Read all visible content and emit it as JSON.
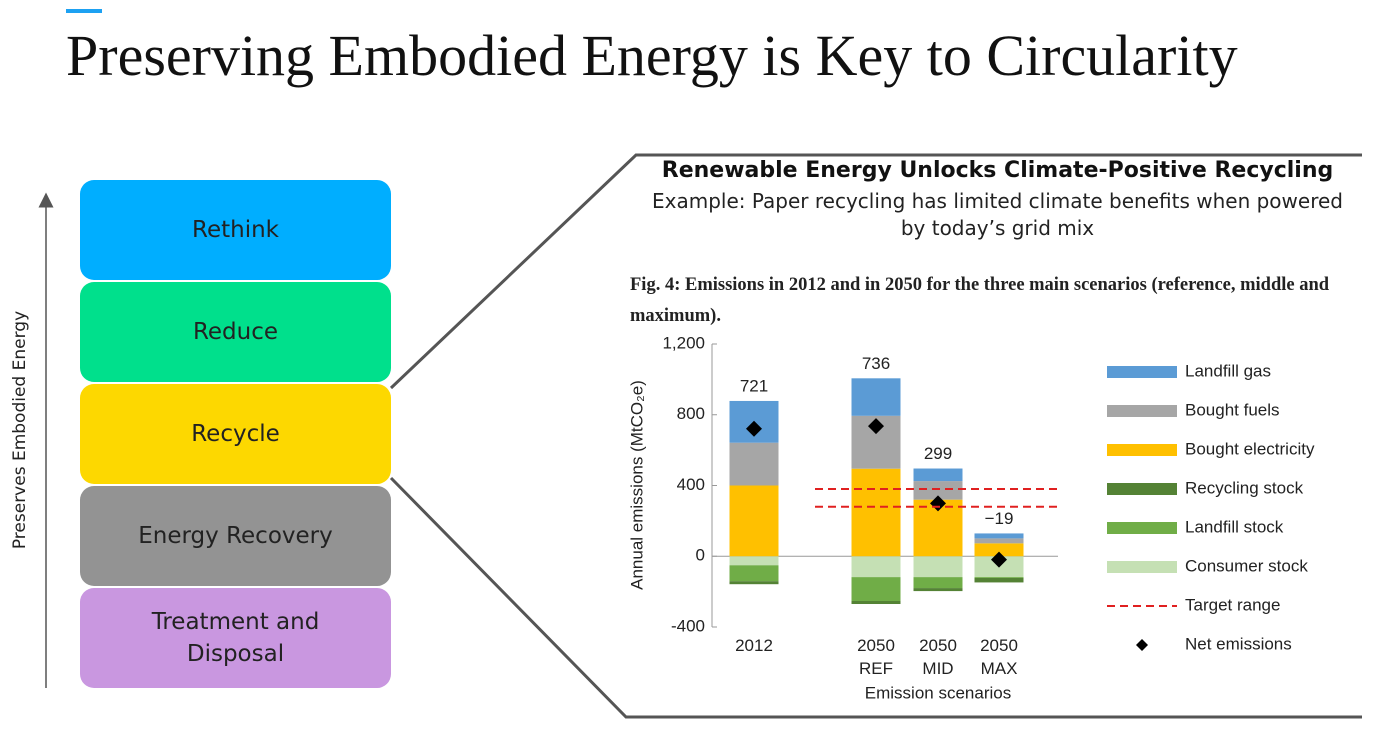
{
  "header": {
    "title": "Preserving Embodied Energy is Key to Circularity"
  },
  "hierarchy": {
    "axis_label": "Preserves Embodied Energy",
    "levels": [
      "Rethink",
      "Reduce",
      "Recycle",
      "Energy Recovery",
      "Treatment and Disposal"
    ]
  },
  "callout": {
    "heading": "Renewable Energy Unlocks Climate-Positive Recycling",
    "text": "Example: Paper recycling has limited climate benefits when powered by today’s grid mix",
    "figure_caption": "Fig. 4: Emissions in 2012 and in 2050 for the three main scenarios (reference, middle and maximum)."
  },
  "chart_data": {
    "type": "stacked_bar",
    "categories": [
      "2012",
      "2050\nREF",
      "2050\nMID",
      "2050\nMAX"
    ],
    "x_label": "Emission scenarios",
    "y_label": "Annual emissions (MtCO₂e)",
    "ylim": [
      -400,
      1200
    ],
    "yticks": [
      {
        "value": 1200,
        "label": "1,200"
      },
      800,
      400,
      0,
      -400
    ],
    "series": [
      {
        "name": "Landfill gas",
        "color": "#5b9bd5",
        "values": [
          236,
          212,
          71,
          28
        ]
      },
      {
        "name": "Bought fuels",
        "color": "#a6a6a6",
        "values": [
          242,
          299,
          105,
          28
        ]
      },
      {
        "name": "Bought electricity",
        "color": "#ffc000",
        "values": [
          400,
          495,
          320,
          73
        ]
      },
      {
        "name": "Recycling stock",
        "color": "#548235",
        "values": [
          -17,
          -17,
          -17,
          -25
        ]
      },
      {
        "name": "Landfill stock",
        "color": "#70ad47",
        "values": [
          -90,
          -135,
          -62,
          -5
        ]
      },
      {
        "name": "Consumer stock",
        "color": "#c5e0b4",
        "values": [
          -51,
          -118,
          -118,
          -118
        ]
      }
    ],
    "target_range": {
      "name": "Target range",
      "color": "#e02020",
      "values": [
        280,
        380
      ]
    },
    "net_emissions": {
      "name": "Net emissions",
      "color": "#000000",
      "values": [
        721,
        736,
        299,
        -19
      ],
      "value_labels": [
        "721",
        "736",
        "299",
        "−19"
      ]
    }
  }
}
